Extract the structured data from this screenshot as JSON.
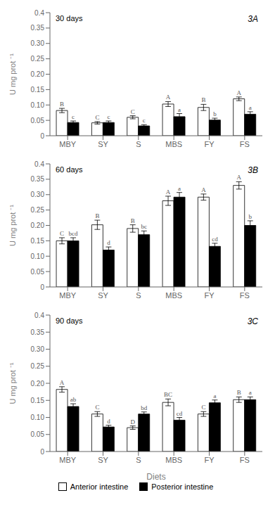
{
  "chart_data": [
    {
      "type": "bar",
      "title": "30 days",
      "subtitle": "3A",
      "ylabel": "U mg prot ⁻¹",
      "categories": [
        "MBY",
        "SY",
        "S",
        "MBS",
        "FY",
        "FS"
      ],
      "series": [
        {
          "name": "Anterior intestine",
          "color": "white",
          "values": [
            0.082,
            0.042,
            0.06,
            0.103,
            0.092,
            0.12
          ],
          "errors": [
            0.007,
            0.004,
            0.005,
            0.008,
            0.01,
            0.006
          ],
          "letters": [
            "B",
            "C",
            "C",
            "A",
            "B",
            "A"
          ]
        },
        {
          "name": "Posterior intestine",
          "color": "black",
          "values": [
            0.043,
            0.043,
            0.032,
            0.062,
            0.051,
            0.07
          ],
          "errors": [
            0.005,
            0.005,
            0.004,
            0.01,
            0.006,
            0.008
          ],
          "letters": [
            "c",
            "c",
            "c",
            "a",
            "b",
            "a"
          ]
        }
      ],
      "ylim": [
        0,
        0.4
      ],
      "yticks": [
        0,
        0.05,
        {
          "value": 0.1,
          "label": "0.10"
        },
        0.15,
        {
          "value": 0.2,
          "label": "0.20"
        },
        0.25,
        {
          "value": 0.3,
          "label": "0.30"
        },
        0.35,
        0.4
      ],
      "grid": false
    },
    {
      "type": "bar",
      "title": "60 days",
      "subtitle": "3B",
      "ylabel": "U mg prot ⁻¹",
      "categories": [
        "MBY",
        "SY",
        "S",
        "MBS",
        "FY",
        "FS"
      ],
      "series": [
        {
          "name": "Anterior intestine",
          "color": "white",
          "values": [
            0.15,
            0.202,
            0.19,
            0.28,
            0.292,
            0.33
          ],
          "errors": [
            0.01,
            0.015,
            0.012,
            0.015,
            0.01,
            0.012
          ],
          "letters": [
            "C",
            "B",
            "B",
            "A",
            "A",
            "A"
          ]
        },
        {
          "name": "Posterior intestine",
          "color": "black",
          "values": [
            0.15,
            0.12,
            0.17,
            0.292,
            0.132,
            0.2
          ],
          "errors": [
            0.01,
            0.01,
            0.012,
            0.015,
            0.01,
            0.015
          ],
          "letters": [
            "bcd",
            "d",
            "bc",
            "a",
            "cd",
            "b"
          ]
        }
      ],
      "ylim": [
        0,
        0.4
      ],
      "yticks": [
        0,
        0.05,
        {
          "value": 0.1,
          "label": "0.10"
        },
        0.15,
        {
          "value": 0.2,
          "label": "0.20"
        },
        0.25,
        {
          "value": 0.3,
          "label": "0.30"
        },
        0.35,
        0.4
      ],
      "grid": false
    },
    {
      "type": "bar",
      "title": "90 days",
      "subtitle": "3C",
      "ylabel": "U mg prot ⁻¹",
      "xlabel": "Diets",
      "categories": [
        "MBY",
        "SY",
        "S",
        "MBS",
        "FY",
        "FS"
      ],
      "series": [
        {
          "name": "Anterior intestine",
          "color": "white",
          "values": [
            0.182,
            0.11,
            0.07,
            0.144,
            0.11,
            0.152
          ],
          "errors": [
            0.008,
            0.007,
            0.005,
            0.01,
            0.007,
            0.008
          ],
          "letters": [
            "A",
            "C",
            "D",
            "BC",
            "C",
            "B"
          ]
        },
        {
          "name": "Posterior intestine",
          "color": "black",
          "values": [
            0.132,
            0.072,
            0.11,
            0.092,
            0.143,
            0.152
          ],
          "errors": [
            0.008,
            0.005,
            0.006,
            0.008,
            0.008,
            0.008
          ],
          "letters": [
            "ab",
            "d",
            "bd",
            "cd",
            "a",
            "a"
          ]
        }
      ],
      "ylim": [
        0,
        0.4
      ],
      "yticks": [
        0,
        0.05,
        {
          "value": 0.1,
          "label": "0.10"
        },
        0.15,
        {
          "value": 0.2,
          "label": "0.20"
        },
        0.25,
        {
          "value": 0.3,
          "label": "0.30"
        },
        0.35,
        0.4
      ],
      "grid": false,
      "legend": "bottom"
    }
  ]
}
